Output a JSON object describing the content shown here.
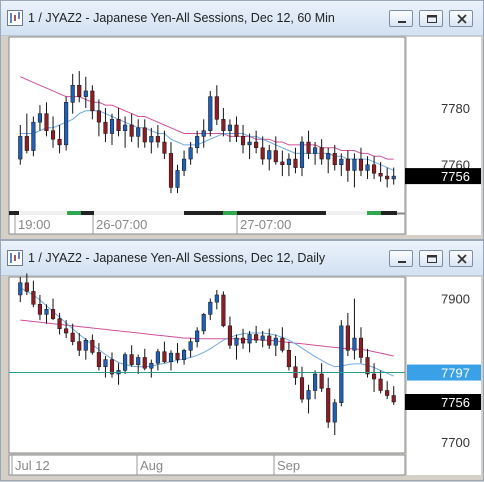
{
  "windows": [
    {
      "title": "1 / JYAZ2 - Japanese Yen-All Sessions, Dec 12, 60 Min",
      "buttons": [
        "minimize-icon",
        "restore-icon",
        "close-icon"
      ]
    },
    {
      "title": "1 / JYAZ2 - Japanese Yen-All Sessions, Dec 12, Daily",
      "buttons": [
        "minimize-icon",
        "restore-icon",
        "close-icon"
      ]
    }
  ],
  "colors": {
    "up": "#1f5fb4",
    "down": "#8c1d24",
    "ma_fast": "#6fa8e0",
    "ma_slow": "#d0509a",
    "hline": "#2a9d8f",
    "label_bg": "#000000",
    "hline_label_bg": "#3aa0e8"
  },
  "chart_data": [
    {
      "type": "candlestick",
      "interval": "60 Min",
      "ylim": [
        7743,
        7805
      ],
      "y_ticks": [
        7760,
        7780
      ],
      "x_ticks": [
        "19:00",
        "26-07:00",
        "27-07:00"
      ],
      "last_price_label": "7756",
      "session_bar": true,
      "candles": [
        [
          7762,
          7774,
          7760,
          7770
        ],
        [
          7770,
          7778,
          7764,
          7765
        ],
        [
          7765,
          7777,
          7763,
          7775
        ],
        [
          7775,
          7781,
          7772,
          7778
        ],
        [
          7778,
          7782,
          7770,
          7772
        ],
        [
          7772,
          7777,
          7766,
          7769
        ],
        [
          7769,
          7774,
          7764,
          7767
        ],
        [
          7767,
          7784,
          7765,
          7782
        ],
        [
          7782,
          7792,
          7778,
          7788
        ],
        [
          7788,
          7793,
          7782,
          7784
        ],
        [
          7784,
          7791,
          7780,
          7786
        ],
        [
          7786,
          7788,
          7776,
          7779
        ],
        [
          7779,
          7783,
          7770,
          7775
        ],
        [
          7775,
          7780,
          7768,
          7771
        ],
        [
          7771,
          7778,
          7767,
          7776
        ],
        [
          7776,
          7780,
          7770,
          7772
        ],
        [
          7772,
          7777,
          7766,
          7774
        ],
        [
          7774,
          7778,
          7768,
          7770
        ],
        [
          7770,
          7776,
          7766,
          7773
        ],
        [
          7773,
          7776,
          7766,
          7768
        ],
        [
          7768,
          7773,
          7764,
          7770
        ],
        [
          7770,
          7774,
          7766,
          7768
        ],
        [
          7768,
          7772,
          7762,
          7764
        ],
        [
          7764,
          7768,
          7750,
          7752
        ],
        [
          7752,
          7760,
          7750,
          7758
        ],
        [
          7758,
          7765,
          7756,
          7762
        ],
        [
          7762,
          7768,
          7760,
          7766
        ],
        [
          7766,
          7772,
          7764,
          7770
        ],
        [
          7770,
          7776,
          7766,
          7772
        ],
        [
          7772,
          7786,
          7770,
          7784
        ],
        [
          7784,
          7788,
          7774,
          7776
        ],
        [
          7776,
          7780,
          7770,
          7772
        ],
        [
          7772,
          7776,
          7768,
          7774
        ],
        [
          7774,
          7777,
          7768,
          7770
        ],
        [
          7770,
          7774,
          7764,
          7767
        ],
        [
          7767,
          7771,
          7762,
          7768
        ],
        [
          7768,
          7772,
          7764,
          7766
        ],
        [
          7766,
          7770,
          7760,
          7762
        ],
        [
          7762,
          7767,
          7758,
          7765
        ],
        [
          7765,
          7770,
          7760,
          7761
        ],
        [
          7761,
          7765,
          7756,
          7760
        ],
        [
          7760,
          7764,
          7756,
          7762
        ],
        [
          7762,
          7766,
          7757,
          7759
        ],
        [
          7759,
          7770,
          7756,
          7768
        ],
        [
          7768,
          7772,
          7762,
          7764
        ],
        [
          7764,
          7768,
          7760,
          7766
        ],
        [
          7766,
          7769,
          7760,
          7762
        ],
        [
          7762,
          7766,
          7757,
          7764
        ],
        [
          7764,
          7767,
          7758,
          7760
        ],
        [
          7760,
          7764,
          7756,
          7762
        ],
        [
          7762,
          7765,
          7754,
          7758
        ],
        [
          7758,
          7764,
          7752,
          7762
        ],
        [
          7762,
          7766,
          7756,
          7758
        ],
        [
          7758,
          7763,
          7755,
          7760
        ],
        [
          7760,
          7763,
          7755,
          7757
        ],
        [
          7757,
          7761,
          7754,
          7756
        ],
        [
          7756,
          7759,
          7752,
          7755
        ],
        [
          7755,
          7759,
          7753,
          7756
        ]
      ],
      "ma_fast": [
        7771,
        7771,
        7771,
        7772,
        7773,
        7773,
        7774,
        7775,
        7776,
        7778,
        7779,
        7779,
        7779,
        7778,
        7777,
        7776,
        7775,
        7774,
        7773,
        7773,
        7772,
        7771,
        7771,
        7769,
        7768,
        7767,
        7767,
        7767,
        7768,
        7769,
        7770,
        7771,
        7771,
        7771,
        7771,
        7770,
        7770,
        7769,
        7768,
        7767,
        7766,
        7765,
        7764,
        7764,
        7764,
        7764,
        7764,
        7764,
        7763,
        7763,
        7762,
        7762,
        7762,
        7762,
        7761,
        7760,
        7759,
        7758
      ],
      "ma_slow": [
        7791,
        7790,
        7789,
        7788,
        7787,
        7786,
        7785,
        7784,
        7784,
        7784,
        7783,
        7782,
        7782,
        7781,
        7781,
        7780,
        7779,
        7778,
        7777,
        7777,
        7776,
        7775,
        7774,
        7773,
        7772,
        7771,
        7771,
        7771,
        7771,
        7771,
        7771,
        7771,
        7770,
        7770,
        7770,
        7770,
        7769,
        7769,
        7769,
        7768,
        7768,
        7767,
        7767,
        7767,
        7767,
        7767,
        7766,
        7766,
        7766,
        7765,
        7765,
        7765,
        7764,
        7764,
        7763,
        7763,
        7762,
        7762
      ]
    },
    {
      "type": "candlestick",
      "interval": "Daily",
      "ylim": [
        7685,
        7930
      ],
      "y_ticks": [
        7700,
        7800,
        7900
      ],
      "x_ticks": [
        "Jul 12",
        "Aug",
        "Sep"
      ],
      "hline": 7797,
      "hline_label": "7797",
      "last_price_label": "7756",
      "candles": [
        [
          7905,
          7930,
          7895,
          7922
        ],
        [
          7922,
          7935,
          7905,
          7910
        ],
        [
          7910,
          7925,
          7888,
          7892
        ],
        [
          7892,
          7905,
          7870,
          7878
        ],
        [
          7878,
          7892,
          7865,
          7885
        ],
        [
          7885,
          7900,
          7870,
          7872
        ],
        [
          7872,
          7880,
          7850,
          7858
        ],
        [
          7858,
          7870,
          7845,
          7852
        ],
        [
          7852,
          7865,
          7835,
          7840
        ],
        [
          7840,
          7852,
          7820,
          7828
        ],
        [
          7828,
          7845,
          7815,
          7842
        ],
        [
          7842,
          7850,
          7822,
          7825
        ],
        [
          7825,
          7838,
          7800,
          7805
        ],
        [
          7805,
          7820,
          7790,
          7815
        ],
        [
          7815,
          7825,
          7790,
          7795
        ],
        [
          7795,
          7810,
          7780,
          7800
        ],
        [
          7800,
          7825,
          7795,
          7822
        ],
        [
          7822,
          7835,
          7805,
          7808
        ],
        [
          7808,
          7822,
          7795,
          7818
        ],
        [
          7818,
          7830,
          7800,
          7803
        ],
        [
          7803,
          7815,
          7790,
          7810
        ],
        [
          7810,
          7830,
          7800,
          7826
        ],
        [
          7826,
          7840,
          7810,
          7812
        ],
        [
          7812,
          7828,
          7800,
          7824
        ],
        [
          7824,
          7838,
          7810,
          7815
        ],
        [
          7815,
          7830,
          7808,
          7828
        ],
        [
          7828,
          7845,
          7818,
          7840
        ],
        [
          7840,
          7860,
          7832,
          7855
        ],
        [
          7855,
          7880,
          7850,
          7878
        ],
        [
          7878,
          7900,
          7870,
          7895
        ],
        [
          7895,
          7912,
          7885,
          7905
        ],
        [
          7905,
          7910,
          7860,
          7862
        ],
        [
          7862,
          7875,
          7830,
          7835
        ],
        [
          7835,
          7850,
          7815,
          7845
        ],
        [
          7845,
          7858,
          7830,
          7838
        ],
        [
          7838,
          7855,
          7825,
          7850
        ],
        [
          7850,
          7862,
          7838,
          7842
        ],
        [
          7842,
          7855,
          7832,
          7848
        ],
        [
          7848,
          7858,
          7830,
          7835
        ],
        [
          7835,
          7850,
          7820,
          7845
        ],
        [
          7845,
          7860,
          7825,
          7828
        ],
        [
          7828,
          7840,
          7800,
          7805
        ],
        [
          7805,
          7820,
          7780,
          7790
        ],
        [
          7790,
          7805,
          7755,
          7760
        ],
        [
          7760,
          7780,
          7740,
          7772
        ],
        [
          7772,
          7800,
          7760,
          7795
        ],
        [
          7795,
          7810,
          7770,
          7775
        ],
        [
          7775,
          7790,
          7720,
          7728
        ],
        [
          7728,
          7760,
          7710,
          7755
        ],
        [
          7755,
          7870,
          7750,
          7862
        ],
        [
          7862,
          7880,
          7820,
          7828
        ],
        [
          7828,
          7900,
          7815,
          7845
        ],
        [
          7845,
          7860,
          7810,
          7818
        ],
        [
          7818,
          7830,
          7790,
          7795
        ],
        [
          7795,
          7810,
          7770,
          7788
        ],
        [
          7788,
          7800,
          7768,
          7772
        ],
        [
          7772,
          7785,
          7760,
          7765
        ],
        [
          7765,
          7778,
          7752,
          7756
        ]
      ],
      "ma_fast": [
        7915,
        7910,
        7905,
        7898,
        7890,
        7882,
        7874,
        7866,
        7858,
        7850,
        7843,
        7836,
        7829,
        7822,
        7816,
        7811,
        7808,
        7806,
        7805,
        7805,
        7806,
        7808,
        7810,
        7812,
        7814,
        7816,
        7818,
        7821,
        7825,
        7830,
        7836,
        7842,
        7846,
        7849,
        7851,
        7852,
        7852,
        7852,
        7851,
        7849,
        7846,
        7842,
        7837,
        7831,
        7825,
        7819,
        7814,
        7809,
        7805,
        7806,
        7808,
        7809,
        7809,
        7807,
        7804,
        7800,
        7796,
        7792
      ],
      "ma_slow": [
        7870,
        7869,
        7868,
        7867,
        7866,
        7865,
        7864,
        7863,
        7862,
        7861,
        7860,
        7859,
        7858,
        7857,
        7856,
        7855,
        7854,
        7853,
        7852,
        7851,
        7850,
        7849,
        7848,
        7847,
        7846,
        7845,
        7845,
        7844,
        7844,
        7844,
        7844,
        7844,
        7844,
        7844,
        7843,
        7843,
        7843,
        7842,
        7842,
        7841,
        7840,
        7839,
        7838,
        7837,
        7836,
        7835,
        7834,
        7833,
        7832,
        7831,
        7830,
        7830,
        7829,
        7828,
        7826,
        7824,
        7822,
        7820
      ]
    }
  ]
}
